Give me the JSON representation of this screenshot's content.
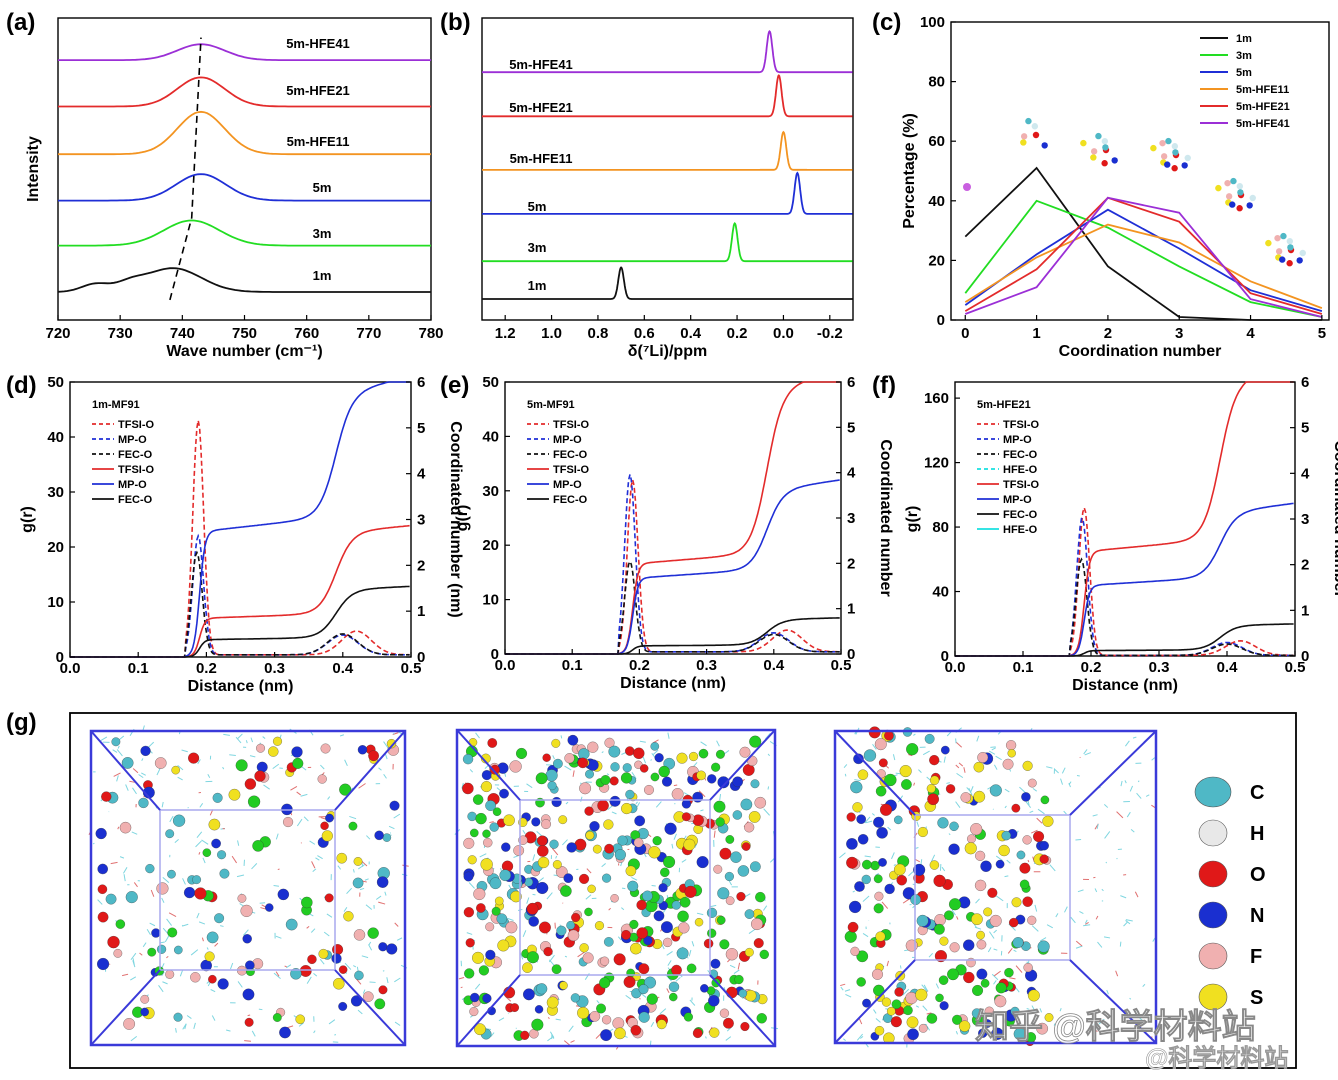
{
  "colors": {
    "black": "#111111",
    "green": "#22dd22",
    "blue": "#1f2fd6",
    "orange": "#f39421",
    "red": "#e32b2b",
    "purple": "#9b2fd6",
    "cyan": "#18e0e0",
    "box": "#3a3ad9"
  },
  "panel_labels": {
    "a": "(a)",
    "b": "(b)",
    "c": "(c)",
    "d": "(d)",
    "e": "(e)",
    "f": "(f)",
    "g": "(g)"
  },
  "chart_data": [
    {
      "id": "a",
      "type": "line",
      "title": "",
      "xlabel": "Wave number (cm⁻¹)",
      "ylabel": "Intensity",
      "xlim": [
        720,
        780
      ],
      "x_ticks": [
        "720",
        "730",
        "740",
        "750",
        "760",
        "770",
        "780"
      ],
      "series": [
        {
          "name": "1m",
          "color": "black",
          "baseline": 0,
          "peak_x": 738.5,
          "peak_h": 0.9,
          "width": 4.5,
          "shoulder": 726
        },
        {
          "name": "3m",
          "color": "green",
          "baseline": 1.75,
          "peak_x": 741.5,
          "peak_h": 0.95,
          "width": 4.5
        },
        {
          "name": "5m",
          "color": "blue",
          "baseline": 3.45,
          "peak_x": 743,
          "peak_h": 1.0,
          "width": 4.0
        },
        {
          "name": "5m-HFE11",
          "color": "orange",
          "baseline": 5.2,
          "peak_x": 743,
          "peak_h": 1.6,
          "width": 3.8
        },
        {
          "name": "5m-HFE21",
          "color": "red",
          "baseline": 7.0,
          "peak_x": 743,
          "peak_h": 1.1,
          "width": 3.8
        },
        {
          "name": "5m-HFE41",
          "color": "purple",
          "baseline": 8.75,
          "peak_x": 743,
          "peak_h": 0.6,
          "width": 3.8
        }
      ],
      "dashed_line": [
        [
          738,
          -0.3
        ],
        [
          741.5,
          2.8
        ],
        [
          743,
          9.6
        ]
      ]
    },
    {
      "id": "b",
      "type": "line",
      "title": "",
      "xlabel": "δ(⁷Li)/ppm",
      "ylabel": "",
      "xlim": [
        1.3,
        -0.3
      ],
      "x_ticks": [
        "1.2",
        "1.0",
        "0.8",
        "0.6",
        "0.4",
        "0.2",
        "0.0",
        "-0.2"
      ],
      "x_tick_vals": [
        1.2,
        1.0,
        0.8,
        0.6,
        0.4,
        0.2,
        0.0,
        -0.2
      ],
      "series": [
        {
          "name": "1m",
          "color": "black",
          "baseline": 0,
          "peak_x": 0.7,
          "peak_h": 1.0
        },
        {
          "name": "3m",
          "color": "green",
          "baseline": 1.2,
          "peak_x": 0.21,
          "peak_h": 1.2
        },
        {
          "name": "5m",
          "color": "blue",
          "baseline": 2.7,
          "peak_x": -0.06,
          "peak_h": 1.3
        },
        {
          "name": "5m-HFE11",
          "color": "orange",
          "baseline": 4.1,
          "peak_x": 0.0,
          "peak_h": 1.2
        },
        {
          "name": "5m-HFE21",
          "color": "red",
          "baseline": 5.8,
          "peak_x": 0.02,
          "peak_h": 1.3
        },
        {
          "name": "5m-HFE41",
          "color": "purple",
          "baseline": 7.2,
          "peak_x": 0.06,
          "peak_h": 1.3
        }
      ]
    },
    {
      "id": "c",
      "type": "line",
      "title": "",
      "xlabel": "Coordination number",
      "ylabel": "Percentage (%)",
      "xlim": [
        -0.2,
        5.1
      ],
      "ylim": [
        0,
        100
      ],
      "x_ticks": [
        "0",
        "1",
        "2",
        "3",
        "4",
        "5"
      ],
      "y_ticks": [
        "0",
        "20",
        "40",
        "60",
        "80",
        "100"
      ],
      "categories": [
        0,
        1,
        2,
        3,
        4,
        5
      ],
      "series": [
        {
          "name": "1m",
          "color": "black",
          "values": [
            28,
            51,
            18,
            1,
            0,
            0
          ]
        },
        {
          "name": "3m",
          "color": "green",
          "values": [
            9,
            40,
            31,
            18,
            6,
            1
          ]
        },
        {
          "name": "5m",
          "color": "blue",
          "values": [
            5,
            22,
            37,
            24,
            10,
            3
          ]
        },
        {
          "name": "5m-HFE11",
          "color": "orange",
          "values": [
            6,
            21,
            32,
            26,
            13,
            4
          ]
        },
        {
          "name": "5m-HFE21",
          "color": "red",
          "values": [
            3,
            17,
            41,
            33,
            9,
            2
          ]
        },
        {
          "name": "5m-HFE41",
          "color": "purple",
          "values": [
            2,
            11,
            41,
            36,
            7,
            1
          ]
        }
      ],
      "legend_position": "top-right"
    },
    {
      "id": "d",
      "type": "line",
      "title": "1m-MF91",
      "xlabel": "Distance (nm)",
      "ylabel": "g(r)",
      "y2label": "Coordinated number (nm)",
      "xlim": [
        0,
        0.5
      ],
      "ylim": [
        0,
        50
      ],
      "y2lim": [
        0,
        6
      ],
      "x_ticks": [
        "0.0",
        "0.1",
        "0.2",
        "0.3",
        "0.4",
        "0.5"
      ],
      "y_ticks": [
        "0",
        "10",
        "20",
        "30",
        "40",
        "50"
      ],
      "y2_ticks": [
        "0",
        "1",
        "2",
        "3",
        "4",
        "5",
        "6"
      ],
      "legend": [
        "TFSI-O",
        "MP-O",
        "FEC-O",
        "TFSI-O",
        "MP-O",
        "FEC-O"
      ],
      "gr": [
        {
          "name": "TFSI-O",
          "color": "red",
          "peak": 43,
          "pos": 0.188,
          "second": 4.3,
          "second_pos": 0.42
        },
        {
          "name": "MP-O",
          "color": "blue",
          "peak": 22,
          "pos": 0.188,
          "second": 3.6,
          "second_pos": 0.4
        },
        {
          "name": "FEC-O",
          "color": "black",
          "peak": 19,
          "pos": 0.186,
          "second": 3.8,
          "second_pos": 0.4
        }
      ],
      "cn": [
        {
          "name": "TFSI-O",
          "color": "red",
          "plateau": 0.85,
          "end": 2.9
        },
        {
          "name": "MP-O",
          "color": "blue",
          "plateau": 2.75,
          "end": 6.3
        },
        {
          "name": "FEC-O",
          "color": "black",
          "plateau": 0.38,
          "end": 1.55
        }
      ]
    },
    {
      "id": "e",
      "type": "line",
      "title": "5m-MF91",
      "xlabel": "Distance (nm)",
      "ylabel": "g(r)",
      "y2label": "Coordinated number",
      "xlim": [
        0,
        0.5
      ],
      "ylim": [
        0,
        50
      ],
      "y2lim": [
        0,
        6
      ],
      "x_ticks": [
        "0.0",
        "0.1",
        "0.2",
        "0.3",
        "0.4",
        "0.5"
      ],
      "y_ticks": [
        "0",
        "10",
        "20",
        "30",
        "40",
        "50"
      ],
      "y2_ticks": [
        "0",
        "1",
        "2",
        "3",
        "4",
        "5",
        "6"
      ],
      "legend": [
        "TFSI-O",
        "MP-O",
        "FEC-O",
        "TFSI-O",
        "MP-O",
        "FEC-O"
      ],
      "gr": [
        {
          "name": "TFSI-O",
          "color": "red",
          "peak": 32,
          "pos": 0.19,
          "second": 4.0,
          "second_pos": 0.42
        },
        {
          "name": "MP-O",
          "color": "blue",
          "peak": 33,
          "pos": 0.186,
          "second": 3.5,
          "second_pos": 0.4
        },
        {
          "name": "FEC-O",
          "color": "black",
          "peak": 17,
          "pos": 0.186,
          "second": 3.2,
          "second_pos": 0.4
        }
      ],
      "cn": [
        {
          "name": "TFSI-O",
          "color": "red",
          "plateau": 2.0,
          "end": 6.3
        },
        {
          "name": "MP-O",
          "color": "blue",
          "plateau": 1.68,
          "end": 3.95
        },
        {
          "name": "FEC-O",
          "color": "black",
          "plateau": 0.18,
          "end": 0.8
        }
      ]
    },
    {
      "id": "f",
      "type": "line",
      "title": "5m-HFE21",
      "xlabel": "Distance (nm)",
      "ylabel": "g(r)",
      "y2label": "Coordinated number",
      "xlim": [
        0,
        0.5
      ],
      "ylim": [
        0,
        170
      ],
      "y2lim": [
        0,
        6
      ],
      "x_ticks": [
        "0.0",
        "0.1",
        "0.2",
        "0.3",
        "0.4",
        "0.5"
      ],
      "y_ticks": [
        "0",
        "40",
        "80",
        "120",
        "160"
      ],
      "y2_ticks": [
        "0",
        "1",
        "2",
        "3",
        "4",
        "5",
        "6"
      ],
      "legend": [
        "TFSI-O",
        "MP-O",
        "FEC-O",
        "HFE-O",
        "TFSI-O",
        "MP-O",
        "FEC-O",
        "HFE-O"
      ],
      "gr": [
        {
          "name": "TFSI-O",
          "color": "red",
          "peak": 92,
          "pos": 0.19,
          "second": 9,
          "second_pos": 0.42
        },
        {
          "name": "MP-O",
          "color": "blue",
          "peak": 86,
          "pos": 0.187,
          "second": 8,
          "second_pos": 0.4
        },
        {
          "name": "FEC-O",
          "color": "black",
          "peak": 60,
          "pos": 0.186,
          "second": 7,
          "second_pos": 0.4
        },
        {
          "name": "HFE-O",
          "color": "cyan",
          "peak": 0,
          "pos": 0.19,
          "second": 0,
          "second_pos": 0.4
        }
      ],
      "cn": [
        {
          "name": "TFSI-O",
          "color": "red",
          "plateau": 2.3,
          "end": 6.5
        },
        {
          "name": "MP-O",
          "color": "blue",
          "plateau": 1.55,
          "end": 3.45
        },
        {
          "name": "FEC-O",
          "color": "black",
          "plateau": 0.12,
          "end": 0.7
        },
        {
          "name": "HFE-O",
          "color": "cyan",
          "plateau": 0.0,
          "end": 0.0
        }
      ]
    }
  ],
  "panel_g": {
    "legend": [
      {
        "label": "C",
        "color": "#4fb8c6"
      },
      {
        "label": "H",
        "color": "#e8e8e8"
      },
      {
        "label": "O",
        "color": "#e01818"
      },
      {
        "label": "N",
        "color": "#1a2fd0"
      },
      {
        "label": "F",
        "color": "#f0b0b0"
      },
      {
        "label": "S",
        "color": "#f0e020"
      }
    ],
    "watermark_main": "知乎 @科学材料站",
    "watermark_sub": "@科学材料站"
  }
}
